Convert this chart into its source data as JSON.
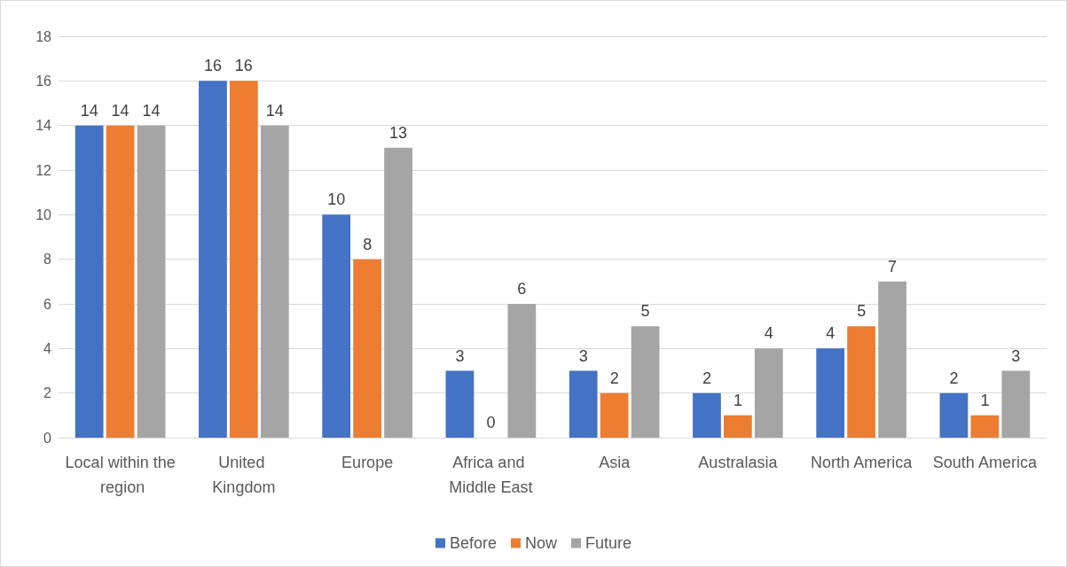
{
  "chart_data": {
    "type": "bar",
    "categories": [
      "Local within the region",
      "United Kingdom",
      "Europe",
      "Africa and Middle East",
      "Asia",
      "Australasia",
      "North America",
      "South America"
    ],
    "series": [
      {
        "name": "Before",
        "color": "#4472c4",
        "values": [
          14,
          16,
          10,
          3,
          3,
          2,
          4,
          2
        ]
      },
      {
        "name": "Now",
        "color": "#ed7d31",
        "values": [
          14,
          16,
          8,
          0,
          2,
          1,
          5,
          1
        ]
      },
      {
        "name": "Future",
        "color": "#a5a5a5",
        "values": [
          14,
          14,
          13,
          6,
          5,
          4,
          7,
          3
        ]
      }
    ],
    "ylim": [
      0,
      18
    ],
    "yticks": [
      0,
      2,
      4,
      6,
      8,
      10,
      12,
      14,
      16,
      18
    ],
    "grid": "y",
    "legend": "bottom",
    "data_labels": true
  }
}
